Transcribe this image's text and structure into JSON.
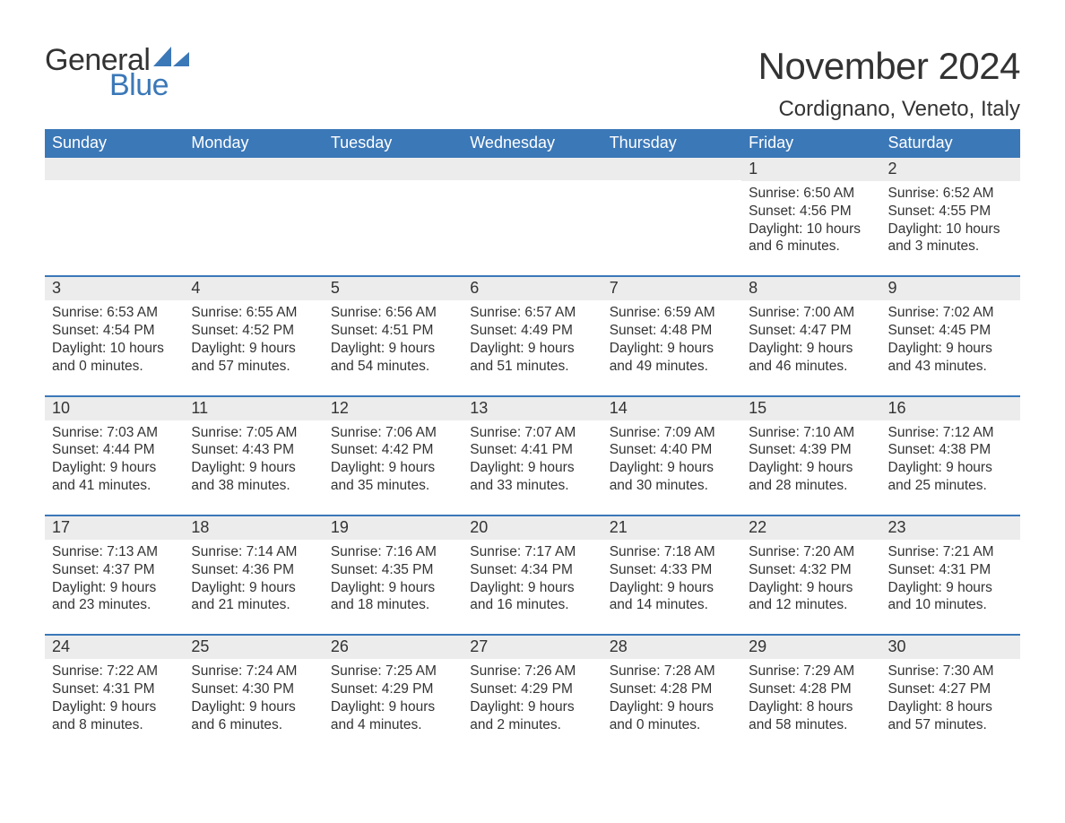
{
  "logo": {
    "general": "General",
    "blue": "Blue",
    "tri_color": "#3b78b8"
  },
  "title": "November 2024",
  "location": "Cordignano, Veneto, Italy",
  "colors": {
    "header_bg": "#3b78b8",
    "header_text": "#ffffff",
    "daynum_bg": "#ececec",
    "border": "#3b78b8",
    "text": "#333333",
    "background": "#ffffff"
  },
  "dow": [
    "Sunday",
    "Monday",
    "Tuesday",
    "Wednesday",
    "Thursday",
    "Friday",
    "Saturday"
  ],
  "weeks": [
    [
      null,
      null,
      null,
      null,
      null,
      {
        "n": "1",
        "sunrise": "6:50 AM",
        "sunset": "4:56 PM",
        "dl1": "Daylight: 10 hours",
        "dl2": "and 6 minutes."
      },
      {
        "n": "2",
        "sunrise": "6:52 AM",
        "sunset": "4:55 PM",
        "dl1": "Daylight: 10 hours",
        "dl2": "and 3 minutes."
      }
    ],
    [
      {
        "n": "3",
        "sunrise": "6:53 AM",
        "sunset": "4:54 PM",
        "dl1": "Daylight: 10 hours",
        "dl2": "and 0 minutes."
      },
      {
        "n": "4",
        "sunrise": "6:55 AM",
        "sunset": "4:52 PM",
        "dl1": "Daylight: 9 hours",
        "dl2": "and 57 minutes."
      },
      {
        "n": "5",
        "sunrise": "6:56 AM",
        "sunset": "4:51 PM",
        "dl1": "Daylight: 9 hours",
        "dl2": "and 54 minutes."
      },
      {
        "n": "6",
        "sunrise": "6:57 AM",
        "sunset": "4:49 PM",
        "dl1": "Daylight: 9 hours",
        "dl2": "and 51 minutes."
      },
      {
        "n": "7",
        "sunrise": "6:59 AM",
        "sunset": "4:48 PM",
        "dl1": "Daylight: 9 hours",
        "dl2": "and 49 minutes."
      },
      {
        "n": "8",
        "sunrise": "7:00 AM",
        "sunset": "4:47 PM",
        "dl1": "Daylight: 9 hours",
        "dl2": "and 46 minutes."
      },
      {
        "n": "9",
        "sunrise": "7:02 AM",
        "sunset": "4:45 PM",
        "dl1": "Daylight: 9 hours",
        "dl2": "and 43 minutes."
      }
    ],
    [
      {
        "n": "10",
        "sunrise": "7:03 AM",
        "sunset": "4:44 PM",
        "dl1": "Daylight: 9 hours",
        "dl2": "and 41 minutes."
      },
      {
        "n": "11",
        "sunrise": "7:05 AM",
        "sunset": "4:43 PM",
        "dl1": "Daylight: 9 hours",
        "dl2": "and 38 minutes."
      },
      {
        "n": "12",
        "sunrise": "7:06 AM",
        "sunset": "4:42 PM",
        "dl1": "Daylight: 9 hours",
        "dl2": "and 35 minutes."
      },
      {
        "n": "13",
        "sunrise": "7:07 AM",
        "sunset": "4:41 PM",
        "dl1": "Daylight: 9 hours",
        "dl2": "and 33 minutes."
      },
      {
        "n": "14",
        "sunrise": "7:09 AM",
        "sunset": "4:40 PM",
        "dl1": "Daylight: 9 hours",
        "dl2": "and 30 minutes."
      },
      {
        "n": "15",
        "sunrise": "7:10 AM",
        "sunset": "4:39 PM",
        "dl1": "Daylight: 9 hours",
        "dl2": "and 28 minutes."
      },
      {
        "n": "16",
        "sunrise": "7:12 AM",
        "sunset": "4:38 PM",
        "dl1": "Daylight: 9 hours",
        "dl2": "and 25 minutes."
      }
    ],
    [
      {
        "n": "17",
        "sunrise": "7:13 AM",
        "sunset": "4:37 PM",
        "dl1": "Daylight: 9 hours",
        "dl2": "and 23 minutes."
      },
      {
        "n": "18",
        "sunrise": "7:14 AM",
        "sunset": "4:36 PM",
        "dl1": "Daylight: 9 hours",
        "dl2": "and 21 minutes."
      },
      {
        "n": "19",
        "sunrise": "7:16 AM",
        "sunset": "4:35 PM",
        "dl1": "Daylight: 9 hours",
        "dl2": "and 18 minutes."
      },
      {
        "n": "20",
        "sunrise": "7:17 AM",
        "sunset": "4:34 PM",
        "dl1": "Daylight: 9 hours",
        "dl2": "and 16 minutes."
      },
      {
        "n": "21",
        "sunrise": "7:18 AM",
        "sunset": "4:33 PM",
        "dl1": "Daylight: 9 hours",
        "dl2": "and 14 minutes."
      },
      {
        "n": "22",
        "sunrise": "7:20 AM",
        "sunset": "4:32 PM",
        "dl1": "Daylight: 9 hours",
        "dl2": "and 12 minutes."
      },
      {
        "n": "23",
        "sunrise": "7:21 AM",
        "sunset": "4:31 PM",
        "dl1": "Daylight: 9 hours",
        "dl2": "and 10 minutes."
      }
    ],
    [
      {
        "n": "24",
        "sunrise": "7:22 AM",
        "sunset": "4:31 PM",
        "dl1": "Daylight: 9 hours",
        "dl2": "and 8 minutes."
      },
      {
        "n": "25",
        "sunrise": "7:24 AM",
        "sunset": "4:30 PM",
        "dl1": "Daylight: 9 hours",
        "dl2": "and 6 minutes."
      },
      {
        "n": "26",
        "sunrise": "7:25 AM",
        "sunset": "4:29 PM",
        "dl1": "Daylight: 9 hours",
        "dl2": "and 4 minutes."
      },
      {
        "n": "27",
        "sunrise": "7:26 AM",
        "sunset": "4:29 PM",
        "dl1": "Daylight: 9 hours",
        "dl2": "and 2 minutes."
      },
      {
        "n": "28",
        "sunrise": "7:28 AM",
        "sunset": "4:28 PM",
        "dl1": "Daylight: 9 hours",
        "dl2": "and 0 minutes."
      },
      {
        "n": "29",
        "sunrise": "7:29 AM",
        "sunset": "4:28 PM",
        "dl1": "Daylight: 8 hours",
        "dl2": "and 58 minutes."
      },
      {
        "n": "30",
        "sunrise": "7:30 AM",
        "sunset": "4:27 PM",
        "dl1": "Daylight: 8 hours",
        "dl2": "and 57 minutes."
      }
    ]
  ],
  "labels": {
    "sunrise_prefix": "Sunrise: ",
    "sunset_prefix": "Sunset: "
  }
}
